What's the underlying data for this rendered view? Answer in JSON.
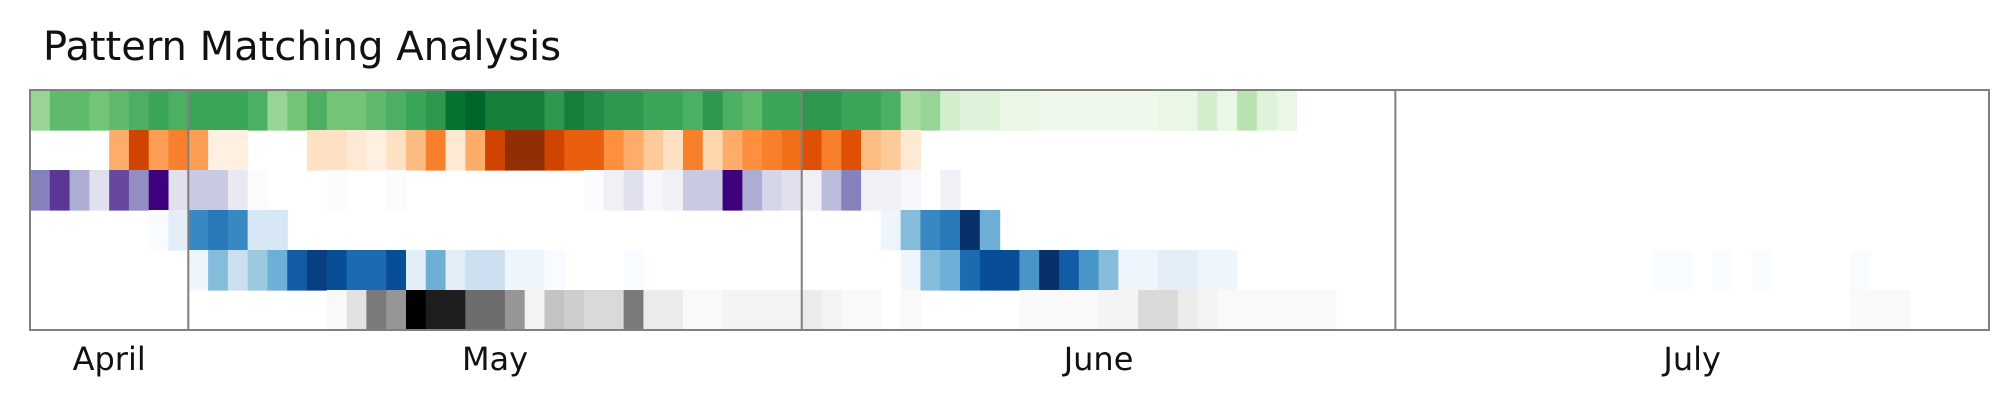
{
  "chart_data": {
    "type": "heatmap",
    "title": "Pattern Matching Analysis",
    "x_axis": {
      "unit": "day",
      "start_date": "2024-04-01",
      "end_date": "2024-07-31",
      "month_labels": [
        "April",
        "May",
        "June",
        "July"
      ],
      "month_spans": [
        {
          "label": "April",
          "start_day": 1,
          "end_day": 8
        },
        {
          "label": "May",
          "start_day": 9,
          "end_day": 39
        },
        {
          "label": "June",
          "start_day": 40,
          "end_day": 69
        },
        {
          "label": "July",
          "start_day": 70,
          "end_day": 99
        }
      ]
    },
    "y_axis": {
      "labels": [],
      "row_count": 6
    },
    "grid": false,
    "legend": "none",
    "rows": [
      {
        "colormap": "Greens",
        "colors": [
          "#ffffff",
          "#e5f5e0",
          "#c7e9c0",
          "#a1d99b",
          "#74c476",
          "#41ab5d",
          "#238b45",
          "#006d2c",
          "#00441b"
        ],
        "values": [
          0.4,
          0.55,
          0.55,
          0.5,
          0.55,
          0.6,
          0.65,
          0.6,
          0.65,
          0.65,
          0.65,
          0.6,
          0.4,
          0.5,
          0.6,
          0.5,
          0.5,
          0.55,
          0.6,
          0.65,
          0.7,
          0.85,
          0.9,
          0.8,
          0.8,
          0.8,
          0.7,
          0.8,
          0.75,
          0.7,
          0.7,
          0.65,
          0.65,
          0.6,
          0.7,
          0.6,
          0.55,
          0.65,
          0.65,
          0.7,
          0.7,
          0.65,
          0.65,
          0.6,
          0.35,
          0.4,
          0.2,
          0.15,
          0.15,
          0.1,
          0.1,
          0.08,
          0.08,
          0.08,
          0.08,
          0.08,
          0.08,
          0.1,
          0.1,
          0.2,
          0.1,
          0.3,
          0.15,
          0.1,
          0,
          0,
          0,
          0,
          0,
          0,
          0,
          0,
          0,
          0,
          0,
          0,
          0,
          0,
          0,
          0,
          0,
          0,
          0,
          0,
          0,
          0,
          0,
          0,
          0,
          0,
          0,
          0,
          0,
          0,
          0,
          0,
          0,
          0,
          0,
          0
        ]
      },
      {
        "colormap": "Oranges",
        "colors": [
          "#ffffff",
          "#fff5eb",
          "#fee6ce",
          "#fdd0a2",
          "#fdae6b",
          "#fd8d3c",
          "#f16913",
          "#d94801",
          "#a63603",
          "#7f2704"
        ],
        "values": [
          0,
          0,
          0,
          0,
          0.45,
          0.8,
          0.5,
          0.6,
          0.5,
          0.15,
          0.15,
          0,
          0,
          0,
          0.25,
          0.25,
          0.2,
          0.15,
          0.25,
          0.4,
          0.6,
          0.2,
          0.45,
          0.8,
          0.95,
          0.95,
          0.8,
          0.7,
          0.7,
          0.55,
          0.45,
          0.35,
          0.25,
          0.6,
          0.3,
          0.45,
          0.55,
          0.6,
          0.65,
          0.75,
          0.6,
          0.75,
          0.4,
          0.35,
          0.2,
          0,
          0,
          0,
          0,
          0,
          0,
          0,
          0,
          0,
          0,
          0,
          0,
          0,
          0,
          0,
          0,
          0,
          0,
          0,
          0,
          0,
          0,
          0,
          0,
          0,
          0,
          0,
          0,
          0,
          0,
          0,
          0,
          0,
          0,
          0,
          0,
          0,
          0,
          0,
          0,
          0,
          0,
          0,
          0,
          0,
          0,
          0,
          0,
          0,
          0,
          0,
          0,
          0,
          0,
          0
        ]
      },
      {
        "colormap": "Purples",
        "colors": [
          "#ffffff",
          "#fcfbfd",
          "#efedf5",
          "#dadaeb",
          "#bcbddc",
          "#9e9ac8",
          "#807dba",
          "#6a51a3",
          "#54278f",
          "#3f007d"
        ],
        "values": [
          0.65,
          0.85,
          0.5,
          0.3,
          0.8,
          0.6,
          1,
          0.3,
          0.4,
          0.4,
          0.25,
          0.1,
          0,
          0,
          0,
          0.1,
          0,
          0,
          0.1,
          0,
          0,
          0,
          0,
          0,
          0,
          0,
          0,
          0,
          0.1,
          0.2,
          0.3,
          0.15,
          0.2,
          0.4,
          0.4,
          1,
          0.5,
          0.35,
          0.3,
          0.2,
          0.45,
          0.65,
          0.2,
          0.2,
          0.15,
          0,
          0.2,
          0,
          0,
          0,
          0,
          0,
          0,
          0,
          0,
          0,
          0,
          0,
          0,
          0,
          0,
          0,
          0,
          0,
          0,
          0,
          0,
          0,
          0,
          0,
          0,
          0,
          0,
          0,
          0,
          0,
          0,
          0,
          0,
          0,
          0,
          0,
          0,
          0,
          0,
          0,
          0,
          0,
          0,
          0,
          0,
          0,
          0,
          0,
          0,
          0,
          0,
          0,
          0,
          0
        ]
      },
      {
        "colormap": "Blues",
        "colors": [
          "#ffffff",
          "#f7fbff",
          "#deebf7",
          "#c6dbef",
          "#9ecae1",
          "#6baed6",
          "#4292c6",
          "#2171b5",
          "#08519c",
          "#08306b"
        ],
        "values": [
          0,
          0,
          0,
          0,
          0,
          0,
          0.1,
          0.2,
          0.7,
          0.75,
          0.7,
          0.25,
          0.25,
          0,
          0,
          0,
          0,
          0,
          0,
          0,
          0,
          0,
          0,
          0,
          0,
          0,
          0,
          0,
          0,
          0,
          0,
          0,
          0,
          0,
          0,
          0,
          0,
          0,
          0,
          0,
          0,
          0,
          0,
          0.15,
          0.5,
          0.7,
          0.75,
          1,
          0.55,
          0,
          0,
          0,
          0,
          0,
          0,
          0,
          0,
          0,
          0,
          0,
          0,
          0,
          0,
          0,
          0,
          0,
          0,
          0,
          0,
          0,
          0,
          0,
          0,
          0,
          0,
          0,
          0,
          0,
          0,
          0,
          0,
          0,
          0,
          0,
          0,
          0,
          0,
          0,
          0,
          0,
          0,
          0,
          0,
          0,
          0,
          0,
          0,
          0,
          0
        ]
      },
      {
        "colormap": "Blues",
        "colors": [
          "#ffffff",
          "#f7fbff",
          "#deebf7",
          "#c6dbef",
          "#9ecae1",
          "#6baed6",
          "#4292c6",
          "#2171b5",
          "#08519c",
          "#08306b"
        ],
        "values": [
          0,
          0,
          0,
          0,
          0,
          0,
          0,
          0,
          0.15,
          0.5,
          0.3,
          0.45,
          0.55,
          0.85,
          0.95,
          0.9,
          0.8,
          0.8,
          0.9,
          0.2,
          0.55,
          0.2,
          0.3,
          0.3,
          0.15,
          0.15,
          0.1,
          0,
          0,
          0,
          0.1,
          0,
          0,
          0,
          0,
          0,
          0,
          0,
          0,
          0,
          0,
          0,
          0,
          0,
          0.15,
          0.5,
          0.55,
          0.8,
          0.9,
          0.9,
          0.65,
          1,
          0.85,
          0.65,
          0.5,
          0.15,
          0.15,
          0.2,
          0.2,
          0.15,
          0.15,
          0,
          0,
          0,
          0,
          0,
          0,
          0,
          0,
          0,
          0,
          0,
          0,
          0,
          0,
          0,
          0,
          0,
          0,
          0,
          0,
          0,
          0.08,
          0.08,
          0,
          0.08,
          0,
          0.08,
          0,
          0,
          0,
          0,
          0.08,
          0,
          0,
          0,
          0,
          0,
          0,
          0,
          0,
          0
        ]
      },
      {
        "colormap": "Greys",
        "colors": [
          "#ffffff",
          "#f0f0f0",
          "#d9d9d9",
          "#bdbdbd",
          "#969696",
          "#737373",
          "#525252",
          "#252525",
          "#000000"
        ],
        "values": [
          0,
          0,
          0,
          0,
          0,
          0,
          0,
          0,
          0,
          0,
          0,
          0,
          0,
          0,
          0,
          0.05,
          0.2,
          0.6,
          0.5,
          1,
          0.9,
          0.9,
          0.65,
          0.65,
          0.5,
          0.1,
          0.35,
          0.3,
          0.25,
          0.25,
          0.6,
          0.15,
          0.15,
          0.05,
          0.05,
          0.1,
          0.1,
          0.1,
          0.1,
          0.15,
          0.1,
          0.05,
          0.05,
          0,
          0.05,
          0,
          0,
          0,
          0,
          0,
          0.05,
          0.05,
          0.05,
          0.05,
          0.1,
          0.1,
          0.25,
          0.25,
          0.15,
          0.1,
          0.05,
          0.05,
          0.05,
          0.05,
          0.05,
          0.05,
          0,
          0,
          0,
          0,
          0,
          0,
          0,
          0,
          0,
          0,
          0,
          0,
          0,
          0,
          0,
          0,
          0,
          0,
          0,
          0,
          0,
          0,
          0,
          0,
          0,
          0,
          0.05,
          0.05,
          0.05,
          0,
          0,
          0,
          0,
          0
        ]
      }
    ]
  }
}
